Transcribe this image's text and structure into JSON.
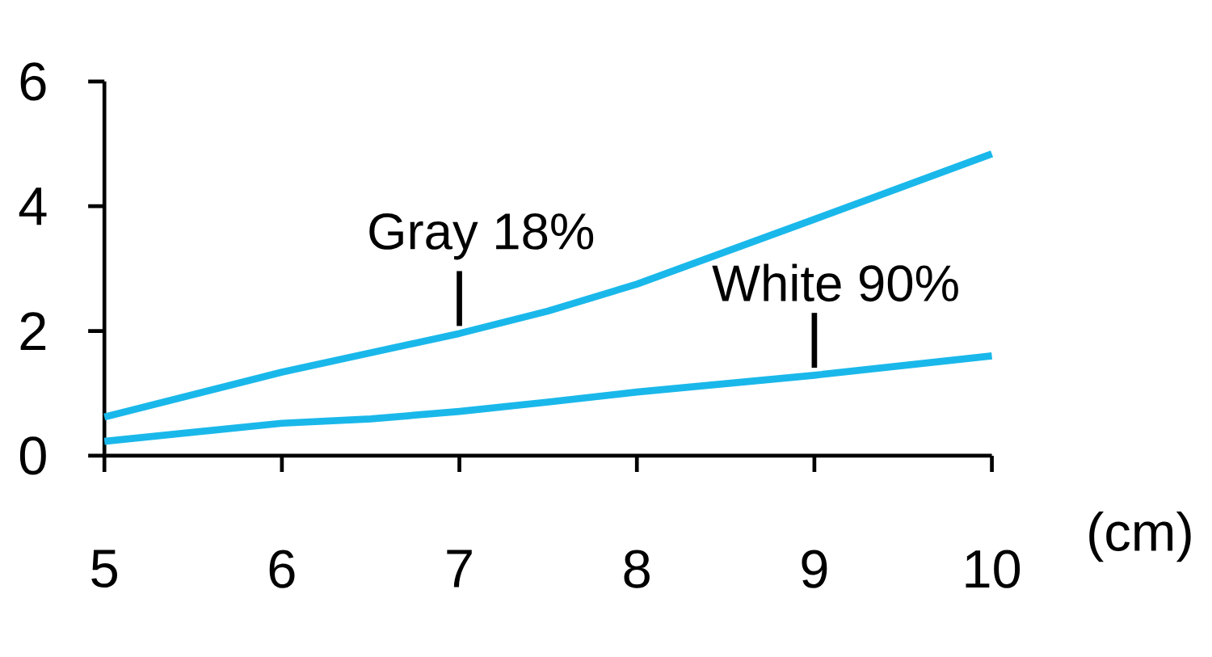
{
  "chart_data": {
    "type": "line",
    "xlabel": "(cm)",
    "xlim": [
      5,
      10
    ],
    "ylim": [
      0,
      6
    ],
    "xticks": [
      5,
      6,
      7,
      8,
      9,
      10
    ],
    "yticks": [
      0,
      2,
      4,
      6
    ],
    "grid": false,
    "marker": "none",
    "line_style": "solid",
    "series": [
      {
        "color": "#1ab8ea",
        "x": [
          5,
          6,
          7,
          7.5,
          8,
          9,
          10
        ],
        "values": [
          0.62,
          1.34,
          1.96,
          2.32,
          2.75,
          3.79,
          4.84
        ]
      },
      {
        "color": "#1ab8ea",
        "x": [
          5,
          6,
          6.5,
          7,
          7.5,
          8,
          9,
          10
        ],
        "values": [
          0.23,
          0.52,
          0.59,
          0.71,
          0.86,
          1.02,
          1.29,
          1.6
        ]
      }
    ],
    "annotations": [
      {
        "text": "Gray 18%",
        "x": 7,
        "y": 1.96
      },
      {
        "text": "White 90%",
        "x": 9,
        "y": 1.29
      }
    ]
  }
}
